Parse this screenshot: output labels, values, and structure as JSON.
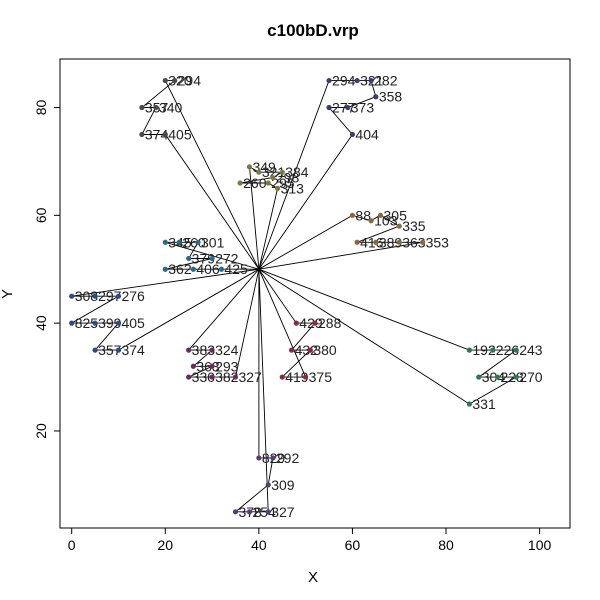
{
  "chart_data": {
    "type": "scatter",
    "title": "c100bD.vrp",
    "xlabel": "X",
    "ylabel": "Y",
    "xlim": [
      -2.5,
      106.5
    ],
    "ylim": [
      2,
      89
    ],
    "x_ticks": [
      0,
      20,
      40,
      60,
      80,
      100
    ],
    "y_ticks": [
      20,
      40,
      60,
      80
    ],
    "grid": false,
    "legend": "none",
    "depot": {
      "x": 40,
      "y": 50
    },
    "routes": [
      {
        "color": "#4a4a4a",
        "points": [
          {
            "x": 20,
            "y": 85,
            "label": "320"
          },
          {
            "x": 22,
            "y": 85,
            "label": "294"
          },
          {
            "x": 15,
            "y": 80,
            "label": "357"
          },
          {
            "x": 18,
            "y": 80,
            "label": "340"
          },
          {
            "x": 15,
            "y": 75,
            "label": "374"
          },
          {
            "x": 20,
            "y": 75,
            "label": "405"
          }
        ]
      },
      {
        "color": "#3d3a7a",
        "points": [
          {
            "x": 55,
            "y": 85,
            "label": "294"
          },
          {
            "x": 61,
            "y": 85,
            "label": "321"
          },
          {
            "x": 64,
            "y": 85,
            "label": "282"
          },
          {
            "x": 65,
            "y": 82,
            "label": "358"
          },
          {
            "x": 59,
            "y": 80,
            "label": "373"
          },
          {
            "x": 55,
            "y": 80,
            "label": "277"
          },
          {
            "x": 60,
            "y": 75,
            "label": "404"
          }
        ]
      },
      {
        "color": "#7a7a3a",
        "points": [
          {
            "x": 38,
            "y": 69,
            "label": "349"
          },
          {
            "x": 40,
            "y": 68,
            "label": "321"
          },
          {
            "x": 45,
            "y": 68,
            "label": "384"
          },
          {
            "x": 43,
            "y": 67,
            "label": "298"
          },
          {
            "x": 36,
            "y": 66,
            "label": "260"
          },
          {
            "x": 42,
            "y": 66,
            "label": "295"
          },
          {
            "x": 44,
            "y": 65,
            "label": "313"
          }
        ]
      },
      {
        "color": "#8a6a3a",
        "points": [
          {
            "x": 60,
            "y": 60,
            "label": "88"
          },
          {
            "x": 64,
            "y": 59,
            "label": "103"
          },
          {
            "x": 66,
            "y": 60,
            "label": "305"
          },
          {
            "x": 70,
            "y": 58,
            "label": "335"
          },
          {
            "x": 61,
            "y": 55,
            "label": "416"
          },
          {
            "x": 65,
            "y": 55,
            "label": "389"
          },
          {
            "x": 70,
            "y": 55,
            "label": "363"
          },
          {
            "x": 75,
            "y": 55,
            "label": "353"
          }
        ]
      },
      {
        "color": "#2a6a8a",
        "points": [
          {
            "x": 20,
            "y": 55,
            "label": "345"
          },
          {
            "x": 23,
            "y": 55,
            "label": "260"
          },
          {
            "x": 27,
            "y": 55,
            "label": "301"
          },
          {
            "x": 25,
            "y": 52,
            "label": "379"
          },
          {
            "x": 30,
            "y": 52,
            "label": "272"
          },
          {
            "x": 20,
            "y": 50,
            "label": "362"
          },
          {
            "x": 26,
            "y": 50,
            "label": "406"
          },
          {
            "x": 32,
            "y": 50,
            "label": "425"
          }
        ]
      },
      {
        "color": "#2a4a8a",
        "points": [
          {
            "x": 0,
            "y": 45,
            "label": "308"
          },
          {
            "x": 5,
            "y": 45,
            "label": "297"
          },
          {
            "x": 10,
            "y": 45,
            "label": "276"
          },
          {
            "x": 0,
            "y": 40,
            "label": "825"
          },
          {
            "x": 5,
            "y": 40,
            "label": "399"
          },
          {
            "x": 10,
            "y": 40,
            "label": "405"
          },
          {
            "x": 5,
            "y": 35,
            "label": "357"
          },
          {
            "x": 10,
            "y": 35,
            "label": "374"
          }
        ]
      },
      {
        "color": "#6a2a5a",
        "points": [
          {
            "x": 25,
            "y": 35,
            "label": "383"
          },
          {
            "x": 30,
            "y": 35,
            "label": "324"
          },
          {
            "x": 26,
            "y": 32,
            "label": "363"
          },
          {
            "x": 30,
            "y": 32,
            "label": "293"
          },
          {
            "x": 25,
            "y": 30,
            "label": "330"
          },
          {
            "x": 30,
            "y": 30,
            "label": "382"
          },
          {
            "x": 35,
            "y": 30,
            "label": "327"
          }
        ]
      },
      {
        "color": "#8a2a3a",
        "points": [
          {
            "x": 48,
            "y": 40,
            "label": "429"
          },
          {
            "x": 52,
            "y": 40,
            "label": "288"
          },
          {
            "x": 47,
            "y": 35,
            "label": "432"
          },
          {
            "x": 51,
            "y": 35,
            "label": "380"
          },
          {
            "x": 45,
            "y": 30,
            "label": "419"
          },
          {
            "x": 50,
            "y": 30,
            "label": "375"
          }
        ]
      },
      {
        "color": "#2a7a4a",
        "points": [
          {
            "x": 85,
            "y": 35,
            "label": "192"
          },
          {
            "x": 90,
            "y": 35,
            "label": "226"
          },
          {
            "x": 95,
            "y": 35,
            "label": "243"
          },
          {
            "x": 87,
            "y": 30,
            "label": "304"
          },
          {
            "x": 91,
            "y": 30,
            "label": "228"
          },
          {
            "x": 95,
            "y": 30,
            "label": "270"
          },
          {
            "x": 85,
            "y": 25,
            "label": "331"
          }
        ]
      },
      {
        "color": "#5a3a7a",
        "points": [
          {
            "x": 40,
            "y": 15,
            "label": "829"
          },
          {
            "x": 43,
            "y": 15,
            "label": "292"
          },
          {
            "x": 42,
            "y": 10,
            "label": "309"
          },
          {
            "x": 35,
            "y": 5,
            "label": "378"
          },
          {
            "x": 38,
            "y": 5,
            "label": "254"
          },
          {
            "x": 42,
            "y": 5,
            "label": "327"
          }
        ]
      }
    ]
  }
}
